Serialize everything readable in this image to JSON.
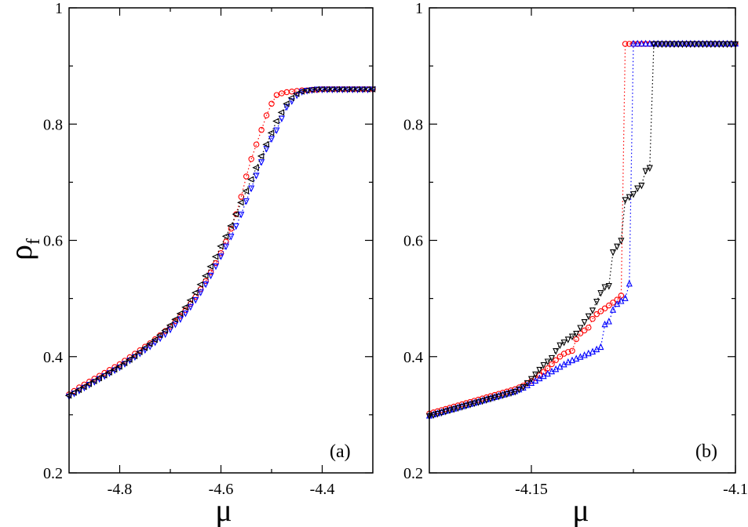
{
  "chart_data": [
    {
      "type": "scatter",
      "panel_label": "(a)",
      "xlabel": "μ",
      "ylabel": "ρ",
      "ylabel_subscript": "f",
      "xlim": [
        -4.9,
        -4.3
      ],
      "ylim": [
        0.2,
        1.0
      ],
      "xticks": [
        -4.8,
        -4.6,
        -4.4
      ],
      "xtick_labels": [
        "-4.8",
        "-4.6",
        "-4.4"
      ],
      "yticks": [
        0.2,
        0.4,
        0.6,
        0.8,
        1.0
      ],
      "ytick_labels": [
        "0.2",
        "0.4",
        "0.6",
        "0.8",
        "1"
      ],
      "grid": false,
      "series": [
        {
          "name": "red circles",
          "color": "#ff0000",
          "marker": "circle",
          "x": [
            -4.9,
            -4.89,
            -4.88,
            -4.87,
            -4.86,
            -4.85,
            -4.84,
            -4.83,
            -4.82,
            -4.81,
            -4.8,
            -4.79,
            -4.78,
            -4.77,
            -4.76,
            -4.75,
            -4.74,
            -4.73,
            -4.72,
            -4.71,
            -4.7,
            -4.69,
            -4.68,
            -4.67,
            -4.66,
            -4.65,
            -4.64,
            -4.63,
            -4.62,
            -4.61,
            -4.6,
            -4.59,
            -4.58,
            -4.57,
            -4.56,
            -4.55,
            -4.54,
            -4.53,
            -4.52,
            -4.51,
            -4.5,
            -4.49,
            -4.48,
            -4.47,
            -4.46,
            -4.45,
            -4.44,
            -4.43,
            -4.42,
            -4.41,
            -4.4,
            -4.39,
            -4.38,
            -4.37,
            -4.36,
            -4.35,
            -4.34,
            -4.33,
            -4.32,
            -4.31,
            -4.3
          ],
          "y": [
            0.335,
            0.341,
            0.347,
            0.352,
            0.357,
            0.362,
            0.367,
            0.372,
            0.377,
            0.382,
            0.387,
            0.393,
            0.399,
            0.405,
            0.411,
            0.417,
            0.423,
            0.43,
            0.437,
            0.444,
            0.452,
            0.461,
            0.47,
            0.48,
            0.491,
            0.503,
            0.516,
            0.53,
            0.545,
            0.561,
            0.578,
            0.598,
            0.62,
            0.645,
            0.675,
            0.71,
            0.74,
            0.765,
            0.79,
            0.815,
            0.835,
            0.85,
            0.853,
            0.855,
            0.856,
            0.857,
            0.858,
            0.858,
            0.859,
            0.859,
            0.86,
            0.86,
            0.86,
            0.86,
            0.86,
            0.86,
            0.86,
            0.86,
            0.86,
            0.86,
            0.86
          ]
        },
        {
          "name": "blue triangles down",
          "color": "#0000ff",
          "marker": "triangle-down",
          "x": [
            -4.9,
            -4.89,
            -4.88,
            -4.87,
            -4.86,
            -4.85,
            -4.84,
            -4.83,
            -4.82,
            -4.81,
            -4.8,
            -4.79,
            -4.78,
            -4.77,
            -4.76,
            -4.75,
            -4.74,
            -4.73,
            -4.72,
            -4.71,
            -4.7,
            -4.69,
            -4.68,
            -4.67,
            -4.66,
            -4.65,
            -4.64,
            -4.63,
            -4.62,
            -4.61,
            -4.6,
            -4.59,
            -4.58,
            -4.57,
            -4.56,
            -4.55,
            -4.54,
            -4.53,
            -4.52,
            -4.51,
            -4.5,
            -4.49,
            -4.48,
            -4.47,
            -4.46,
            -4.45,
            -4.44,
            -4.43,
            -4.42,
            -4.41,
            -4.4,
            -4.39,
            -4.38,
            -4.37,
            -4.36,
            -4.35,
            -4.34,
            -4.33,
            -4.32,
            -4.31,
            -4.3
          ],
          "y": [
            0.332,
            0.337,
            0.342,
            0.347,
            0.352,
            0.357,
            0.362,
            0.367,
            0.372,
            0.377,
            0.382,
            0.388,
            0.394,
            0.4,
            0.406,
            0.412,
            0.418,
            0.425,
            0.432,
            0.439,
            0.447,
            0.456,
            0.465,
            0.475,
            0.486,
            0.498,
            0.511,
            0.525,
            0.54,
            0.556,
            0.573,
            0.59,
            0.607,
            0.625,
            0.645,
            0.668,
            0.69,
            0.712,
            0.735,
            0.758,
            0.775,
            0.79,
            0.81,
            0.83,
            0.84,
            0.85,
            0.856,
            0.858,
            0.859,
            0.86,
            0.86,
            0.86,
            0.86,
            0.86,
            0.86,
            0.86,
            0.86,
            0.86,
            0.86,
            0.86,
            0.86
          ]
        },
        {
          "name": "black triangles left",
          "color": "#000000",
          "marker": "triangle-left",
          "x": [
            -4.9,
            -4.89,
            -4.88,
            -4.87,
            -4.86,
            -4.85,
            -4.84,
            -4.83,
            -4.82,
            -4.81,
            -4.8,
            -4.79,
            -4.78,
            -4.77,
            -4.76,
            -4.75,
            -4.74,
            -4.73,
            -4.72,
            -4.71,
            -4.7,
            -4.69,
            -4.68,
            -4.67,
            -4.66,
            -4.65,
            -4.64,
            -4.63,
            -4.62,
            -4.61,
            -4.6,
            -4.59,
            -4.58,
            -4.57,
            -4.56,
            -4.55,
            -4.54,
            -4.53,
            -4.52,
            -4.51,
            -4.5,
            -4.49,
            -4.48,
            -4.47,
            -4.46,
            -4.45,
            -4.44,
            -4.43,
            -4.42,
            -4.41,
            -4.4,
            -4.39,
            -4.38,
            -4.37,
            -4.36,
            -4.35,
            -4.34,
            -4.33,
            -4.32,
            -4.31,
            -4.3
          ],
          "y": [
            0.333,
            0.338,
            0.343,
            0.348,
            0.353,
            0.358,
            0.363,
            0.368,
            0.373,
            0.378,
            0.383,
            0.389,
            0.395,
            0.401,
            0.408,
            0.415,
            0.422,
            0.429,
            0.437,
            0.445,
            0.454,
            0.464,
            0.474,
            0.485,
            0.497,
            0.51,
            0.524,
            0.539,
            0.555,
            0.572,
            0.59,
            0.607,
            0.625,
            0.645,
            0.665,
            0.685,
            0.705,
            0.725,
            0.745,
            0.765,
            0.785,
            0.805,
            0.82,
            0.835,
            0.845,
            0.852,
            0.856,
            0.858,
            0.859,
            0.86,
            0.86,
            0.86,
            0.86,
            0.86,
            0.86,
            0.86,
            0.86,
            0.86,
            0.86,
            0.86,
            0.86
          ]
        }
      ]
    },
    {
      "type": "scatter",
      "panel_label": "(b)",
      "xlabel": "μ",
      "ylabel": "",
      "xlim": [
        -4.175,
        -4.1
      ],
      "ylim": [
        0.2,
        1.0
      ],
      "xticks": [
        -4.15,
        -4.1
      ],
      "xtick_labels": [
        "-4.15",
        "-4.1"
      ],
      "yticks": [
        0.2,
        0.4,
        0.6,
        0.8,
        1.0
      ],
      "ytick_labels": [
        "0.2",
        "0.4",
        "0.6",
        "0.8",
        "1"
      ],
      "grid": false,
      "series": [
        {
          "name": "red circles",
          "color": "#ff0000",
          "marker": "circle",
          "x": [
            -4.175,
            -4.174,
            -4.173,
            -4.172,
            -4.171,
            -4.17,
            -4.169,
            -4.168,
            -4.167,
            -4.166,
            -4.165,
            -4.164,
            -4.163,
            -4.162,
            -4.161,
            -4.16,
            -4.159,
            -4.158,
            -4.157,
            -4.156,
            -4.155,
            -4.154,
            -4.153,
            -4.152,
            -4.151,
            -4.15,
            -4.149,
            -4.148,
            -4.147,
            -4.146,
            -4.145,
            -4.144,
            -4.143,
            -4.142,
            -4.141,
            -4.14,
            -4.139,
            -4.138,
            -4.137,
            -4.136,
            -4.135,
            -4.134,
            -4.133,
            -4.132,
            -4.131,
            -4.13,
            -4.129,
            -4.128,
            -4.127,
            -4.126,
            -4.125,
            -4.124,
            -4.123,
            -4.122,
            -4.121,
            -4.12,
            -4.119,
            -4.118,
            -4.117,
            -4.116,
            -4.115,
            -4.114,
            -4.113,
            -4.112,
            -4.111,
            -4.11,
            -4.109,
            -4.108,
            -4.107,
            -4.106,
            -4.105,
            -4.104,
            -4.103,
            -4.102,
            -4.101,
            -4.1
          ],
          "y": [
            0.302,
            0.304,
            0.306,
            0.308,
            0.31,
            0.312,
            0.314,
            0.316,
            0.318,
            0.32,
            0.322,
            0.324,
            0.326,
            0.328,
            0.33,
            0.332,
            0.334,
            0.336,
            0.338,
            0.34,
            0.342,
            0.344,
            0.347,
            0.35,
            0.354,
            0.358,
            0.363,
            0.368,
            0.374,
            0.38,
            0.387,
            0.394,
            0.4,
            0.405,
            0.408,
            0.41,
            0.43,
            0.44,
            0.445,
            0.45,
            0.465,
            0.473,
            0.478,
            0.483,
            0.488,
            0.493,
            0.498,
            0.505,
            0.938,
            0.938,
            0.938,
            0.938,
            0.938,
            0.938,
            0.938,
            0.938,
            0.938,
            0.938,
            0.938,
            0.938,
            0.938,
            0.938,
            0.938,
            0.938,
            0.938,
            0.938,
            0.938,
            0.938,
            0.938,
            0.938,
            0.938,
            0.938,
            0.938,
            0.938,
            0.938,
            0.938
          ]
        },
        {
          "name": "blue triangles up",
          "color": "#0000ff",
          "marker": "triangle-up",
          "x": [
            -4.175,
            -4.174,
            -4.173,
            -4.172,
            -4.171,
            -4.17,
            -4.169,
            -4.168,
            -4.167,
            -4.166,
            -4.165,
            -4.164,
            -4.163,
            -4.162,
            -4.161,
            -4.16,
            -4.159,
            -4.158,
            -4.157,
            -4.156,
            -4.155,
            -4.154,
            -4.153,
            -4.152,
            -4.151,
            -4.15,
            -4.149,
            -4.148,
            -4.147,
            -4.146,
            -4.145,
            -4.144,
            -4.143,
            -4.142,
            -4.141,
            -4.14,
            -4.139,
            -4.138,
            -4.137,
            -4.136,
            -4.135,
            -4.134,
            -4.133,
            -4.132,
            -4.131,
            -4.13,
            -4.129,
            -4.128,
            -4.127,
            -4.126,
            -4.125,
            -4.124,
            -4.123,
            -4.122,
            -4.121,
            -4.12,
            -4.119,
            -4.118,
            -4.117,
            -4.116,
            -4.115,
            -4.114,
            -4.113,
            -4.112,
            -4.111,
            -4.11,
            -4.109,
            -4.108,
            -4.107,
            -4.106,
            -4.105,
            -4.104,
            -4.103,
            -4.102,
            -4.101,
            -4.1
          ],
          "y": [
            0.298,
            0.3,
            0.302,
            0.304,
            0.306,
            0.308,
            0.31,
            0.312,
            0.314,
            0.316,
            0.318,
            0.32,
            0.322,
            0.324,
            0.326,
            0.328,
            0.33,
            0.332,
            0.334,
            0.336,
            0.338,
            0.34,
            0.343,
            0.346,
            0.35,
            0.354,
            0.358,
            0.362,
            0.366,
            0.37,
            0.374,
            0.378,
            0.382,
            0.386,
            0.39,
            0.393,
            0.396,
            0.399,
            0.402,
            0.405,
            0.408,
            0.412,
            0.416,
            0.455,
            0.46,
            0.48,
            0.49,
            0.495,
            0.5,
            0.525,
            0.938,
            0.938,
            0.938,
            0.938,
            0.938,
            0.938,
            0.938,
            0.938,
            0.938,
            0.938,
            0.938,
            0.938,
            0.938,
            0.938,
            0.938,
            0.938,
            0.938,
            0.938,
            0.938,
            0.938,
            0.938,
            0.938,
            0.938,
            0.938,
            0.938,
            0.938
          ]
        },
        {
          "name": "black triangles down",
          "color": "#000000",
          "marker": "triangle-down",
          "x": [
            -4.175,
            -4.174,
            -4.173,
            -4.172,
            -4.171,
            -4.17,
            -4.169,
            -4.168,
            -4.167,
            -4.166,
            -4.165,
            -4.164,
            -4.163,
            -4.162,
            -4.161,
            -4.16,
            -4.159,
            -4.158,
            -4.157,
            -4.156,
            -4.155,
            -4.154,
            -4.153,
            -4.152,
            -4.151,
            -4.15,
            -4.149,
            -4.148,
            -4.147,
            -4.146,
            -4.145,
            -4.144,
            -4.143,
            -4.142,
            -4.141,
            -4.14,
            -4.139,
            -4.138,
            -4.137,
            -4.136,
            -4.135,
            -4.134,
            -4.133,
            -4.132,
            -4.131,
            -4.13,
            -4.129,
            -4.128,
            -4.127,
            -4.126,
            -4.125,
            -4.124,
            -4.123,
            -4.122,
            -4.121,
            -4.12,
            -4.119,
            -4.118,
            -4.117,
            -4.116,
            -4.115,
            -4.114,
            -4.113,
            -4.112,
            -4.111,
            -4.11,
            -4.109,
            -4.108,
            -4.107,
            -4.106,
            -4.105,
            -4.104,
            -4.103,
            -4.102,
            -4.101,
            -4.1
          ],
          "y": [
            0.298,
            0.3,
            0.302,
            0.304,
            0.306,
            0.308,
            0.31,
            0.312,
            0.314,
            0.316,
            0.318,
            0.32,
            0.322,
            0.324,
            0.326,
            0.328,
            0.33,
            0.332,
            0.334,
            0.336,
            0.338,
            0.34,
            0.344,
            0.348,
            0.355,
            0.362,
            0.37,
            0.378,
            0.386,
            0.392,
            0.398,
            0.41,
            0.42,
            0.425,
            0.43,
            0.435,
            0.44,
            0.45,
            0.46,
            0.47,
            0.48,
            0.495,
            0.51,
            0.52,
            0.522,
            0.58,
            0.59,
            0.6,
            0.67,
            0.675,
            0.68,
            0.69,
            0.695,
            0.72,
            0.725,
            0.938,
            0.938,
            0.938,
            0.938,
            0.938,
            0.938,
            0.938,
            0.938,
            0.938,
            0.938,
            0.938,
            0.938,
            0.938,
            0.938,
            0.938,
            0.938,
            0.938,
            0.938,
            0.938,
            0.938,
            0.938
          ]
        }
      ]
    }
  ]
}
